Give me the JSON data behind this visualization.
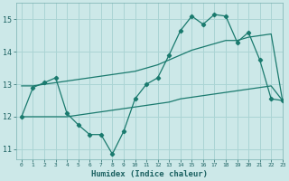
{
  "xlabel": "Humidex (Indice chaleur)",
  "background_color": "#cce8e8",
  "grid_color": "#aad4d4",
  "line_color": "#1a7a6e",
  "xlim": [
    -0.5,
    23
  ],
  "ylim": [
    10.7,
    15.5
  ],
  "xticks": [
    0,
    1,
    2,
    3,
    4,
    5,
    6,
    7,
    8,
    9,
    10,
    11,
    12,
    13,
    14,
    15,
    16,
    17,
    18,
    19,
    20,
    21,
    22,
    23
  ],
  "yticks": [
    11,
    12,
    13,
    14,
    15
  ],
  "line1_x": [
    0,
    1,
    2,
    3,
    4,
    5,
    6,
    7,
    8,
    9,
    10,
    11,
    12,
    13,
    14,
    15,
    16,
    17,
    18,
    19,
    20,
    21,
    22,
    23
  ],
  "line1_y": [
    12.0,
    12.9,
    13.05,
    13.2,
    12.1,
    11.75,
    11.45,
    11.45,
    10.85,
    11.55,
    12.55,
    13.0,
    13.2,
    13.9,
    14.65,
    15.1,
    14.85,
    15.15,
    15.1,
    14.3,
    14.6,
    13.75,
    12.55,
    12.5
  ],
  "line2_x": [
    0,
    1,
    2,
    3,
    4,
    5,
    6,
    7,
    8,
    9,
    10,
    11,
    12,
    13,
    14,
    15,
    16,
    17,
    18,
    19,
    20,
    21,
    22,
    23
  ],
  "line2_y": [
    12.95,
    12.95,
    13.0,
    13.05,
    13.1,
    13.15,
    13.2,
    13.25,
    13.3,
    13.35,
    13.4,
    13.5,
    13.6,
    13.75,
    13.9,
    14.05,
    14.15,
    14.25,
    14.35,
    14.35,
    14.45,
    14.5,
    14.55,
    12.5
  ],
  "line3_x": [
    0,
    1,
    2,
    3,
    4,
    5,
    6,
    7,
    8,
    9,
    10,
    11,
    12,
    13,
    14,
    15,
    16,
    17,
    18,
    19,
    20,
    21,
    22,
    23
  ],
  "line3_y": [
    12.0,
    12.0,
    12.0,
    12.0,
    12.0,
    12.05,
    12.1,
    12.15,
    12.2,
    12.25,
    12.3,
    12.35,
    12.4,
    12.45,
    12.55,
    12.6,
    12.65,
    12.7,
    12.75,
    12.8,
    12.85,
    12.9,
    12.95,
    12.5
  ]
}
